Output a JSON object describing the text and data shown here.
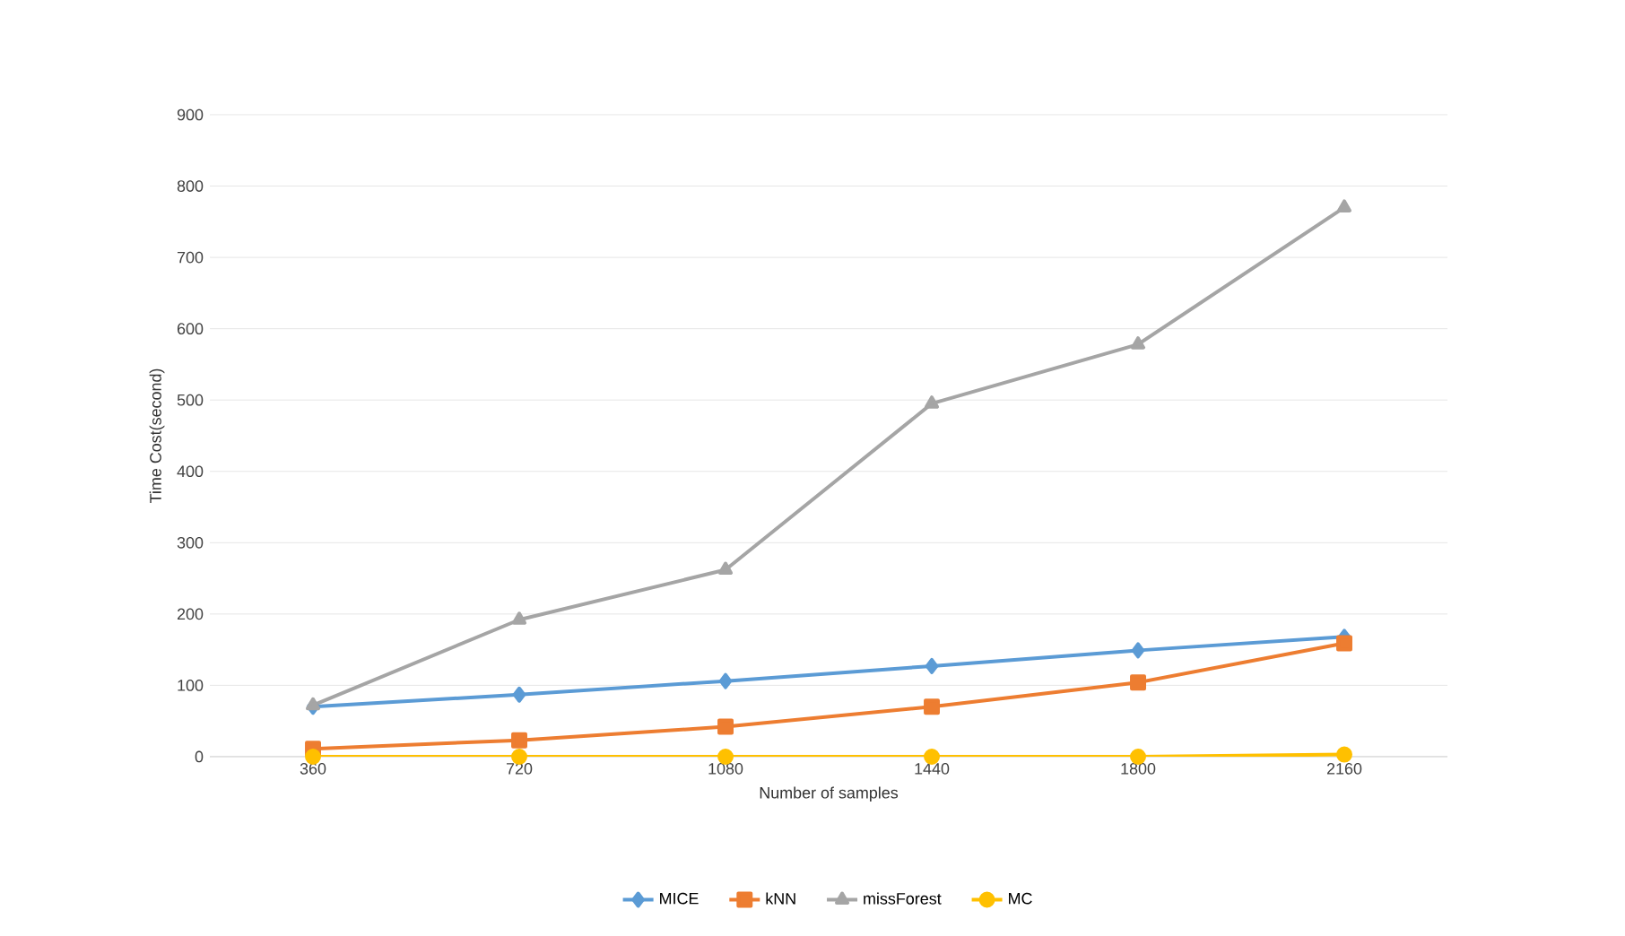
{
  "chart_data": {
    "type": "line",
    "xlabel": "Number of samples",
    "ylabel": "Time Cost(second)",
    "categories": [
      "360",
      "720",
      "1080",
      "1440",
      "1800",
      "2160"
    ],
    "series": [
      {
        "name": "MICE",
        "color": "#5b9bd5",
        "marker": "diamond",
        "values": [
          70,
          87,
          106,
          127,
          149,
          168
        ]
      },
      {
        "name": "kNN",
        "color": "#ed7d31",
        "marker": "square",
        "values": [
          11,
          23,
          42,
          70,
          104,
          159
        ]
      },
      {
        "name": "missForest",
        "color": "#a5a5a5",
        "marker": "triangle",
        "values": [
          72,
          192,
          262,
          495,
          578,
          770
        ]
      },
      {
        "name": "MC",
        "color": "#ffc000",
        "marker": "circle",
        "values": [
          0,
          0,
          0,
          0,
          0,
          3
        ]
      }
    ],
    "ylim": [
      0,
      900
    ],
    "yticks": [
      0,
      100,
      200,
      300,
      400,
      500,
      600,
      700,
      800,
      900
    ],
    "grid": "y",
    "legend": "bottom"
  }
}
